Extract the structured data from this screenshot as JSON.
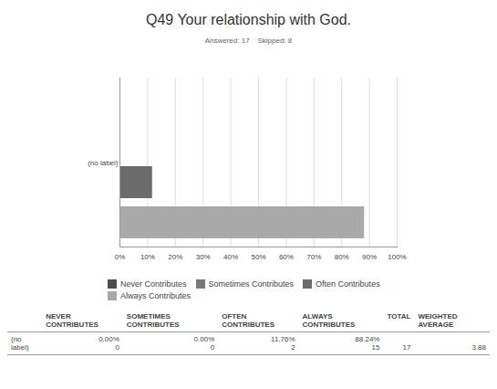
{
  "chart_data": {
    "type": "bar",
    "orientation": "horizontal",
    "title": "Q49 Your relationship with God.",
    "subtitle": "Answered: 17    Skipped: 8",
    "categories": [
      "(no label)"
    ],
    "series": [
      {
        "name": "Never Contributes",
        "color": "#4d4d4d",
        "values": [
          0
        ]
      },
      {
        "name": "Sometimes Contributes",
        "color": "#7a7a7a",
        "values": [
          0
        ]
      },
      {
        "name": "Often Contributes",
        "color": "#6b6b6b",
        "values": [
          11.76
        ]
      },
      {
        "name": "Always Contributes",
        "color": "#a9a9a9",
        "values": [
          88.24
        ]
      }
    ],
    "xlim": [
      0,
      100
    ],
    "xticks": [
      {
        "value": 0,
        "label": "0%"
      },
      {
        "value": 10,
        "label": "10%"
      },
      {
        "value": 20,
        "label": "20%"
      },
      {
        "value": 30,
        "label": "30%"
      },
      {
        "value": 40,
        "label": "40%"
      },
      {
        "value": 50,
        "label": "50%"
      },
      {
        "value": 60,
        "label": "60%"
      },
      {
        "value": 70,
        "label": "70%"
      },
      {
        "value": 80,
        "label": "80%"
      },
      {
        "value": 90,
        "label": "90%"
      },
      {
        "value": 100,
        "label": "100%"
      }
    ],
    "grid": true,
    "legend": "bottom"
  },
  "table": {
    "columns": [
      "NEVER CONTRIBUTES",
      "SOMETIMES CONTRIBUTES",
      "OFTEN CONTRIBUTES",
      "ALWAYS CONTRIBUTES",
      "TOTAL",
      "WEIGHTED AVERAGE"
    ],
    "rows": [
      {
        "label": "(no label)",
        "cells": [
          {
            "percent": "0.00%",
            "count": "0"
          },
          {
            "percent": "0.00%",
            "count": "0"
          },
          {
            "percent": "11.76%",
            "count": "2"
          },
          {
            "percent": "88.24%",
            "count": "15"
          }
        ],
        "total": "17",
        "weighted_average": "3.88"
      }
    ]
  }
}
